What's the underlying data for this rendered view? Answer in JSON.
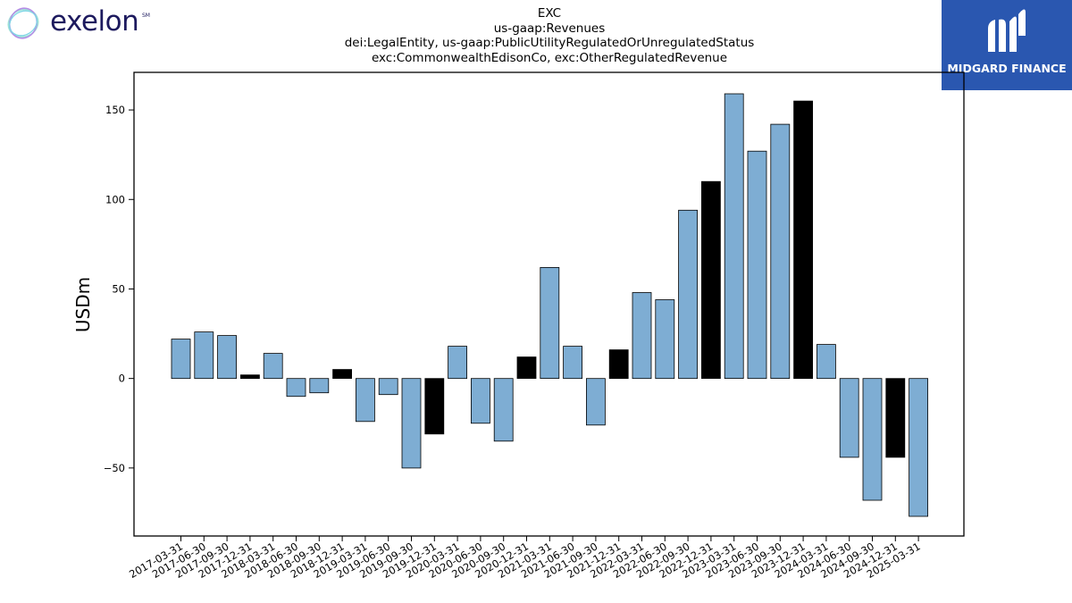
{
  "brand": {
    "left_logo_text": "exelon",
    "left_logo_mark": "SM",
    "right_logo_text": "MIDGARD FINANCE"
  },
  "chart_data": {
    "type": "bar",
    "title_lines": [
      "EXC",
      "us-gaap:Revenues",
      "dei:LegalEntity, us-gaap:PublicUtilityRegulatedOrUnregulatedStatus",
      "exc:CommonwealthEdisonCo, exc:OtherRegulatedRevenue"
    ],
    "xlabel": "",
    "ylabel": "USDm",
    "ylim": [
      -88,
      171
    ],
    "yticks": [
      -50,
      0,
      50,
      100,
      150
    ],
    "grid": false,
    "colors": {
      "regular": "#7eadd3",
      "highlight": "#000000",
      "edge": "#000000"
    },
    "categories": [
      "2017-03-31",
      "2017-06-30",
      "2017-09-30",
      "2017-12-31",
      "2018-03-31",
      "2018-06-30",
      "2018-09-30",
      "2018-12-31",
      "2019-03-31",
      "2019-06-30",
      "2019-09-30",
      "2019-12-31",
      "2020-03-31",
      "2020-06-30",
      "2020-09-30",
      "2020-12-31",
      "2021-03-31",
      "2021-06-30",
      "2021-09-30",
      "2021-12-31",
      "2022-03-31",
      "2022-06-30",
      "2022-09-30",
      "2022-12-31",
      "2023-03-31",
      "2023-06-30",
      "2023-09-30",
      "2023-12-31",
      "2024-03-31",
      "2024-06-30",
      "2024-09-30",
      "2024-12-31",
      "2025-03-31"
    ],
    "values": [
      22,
      26,
      24,
      2,
      14,
      -10,
      -8,
      5,
      -24,
      -9,
      -50,
      -31,
      18,
      -25,
      -35,
      12,
      62,
      18,
      -26,
      16,
      48,
      44,
      94,
      110,
      159,
      127,
      142,
      155,
      19,
      -44,
      -68,
      -44,
      -77
    ],
    "highlight": [
      false,
      false,
      false,
      true,
      false,
      false,
      false,
      true,
      false,
      false,
      false,
      true,
      false,
      false,
      false,
      true,
      false,
      false,
      false,
      true,
      false,
      false,
      false,
      true,
      false,
      false,
      false,
      true,
      false,
      false,
      false,
      true,
      false
    ]
  }
}
